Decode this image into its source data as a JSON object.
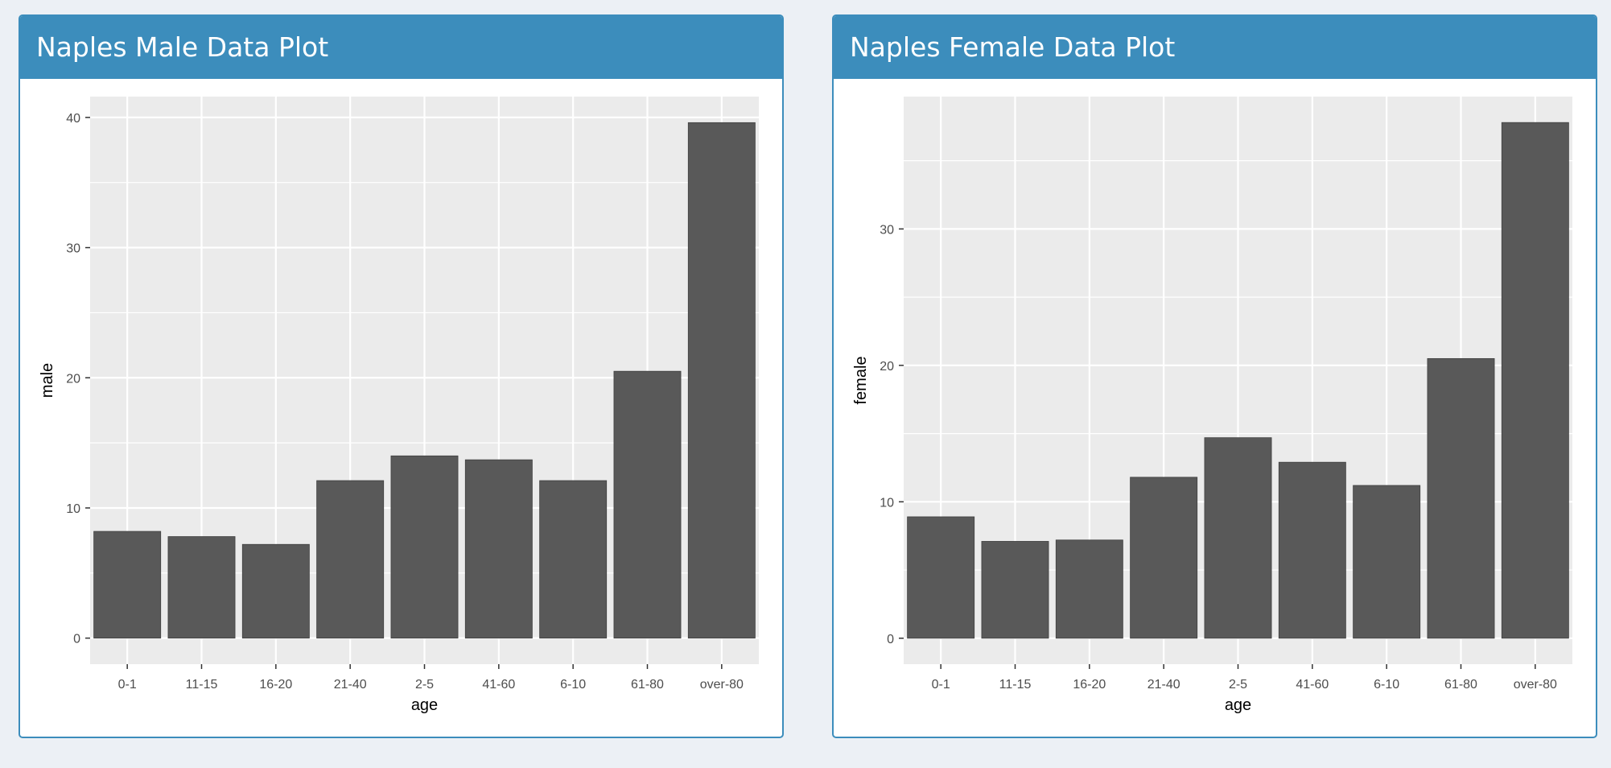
{
  "boxes": [
    {
      "title": "Naples Male Data Plot"
    },
    {
      "title": "Naples Female Data Plot"
    }
  ],
  "colors": {
    "header": "#3c8dbc",
    "panel": "#ebebeb",
    "grid": "#ffffff",
    "bar": "#595959"
  },
  "chart_data": [
    {
      "type": "bar",
      "categories": [
        "0-1",
        "11-15",
        "16-20",
        "21-40",
        "2-5",
        "41-60",
        "6-10",
        "61-80",
        "over-80"
      ],
      "values": [
        8.2,
        7.8,
        7.2,
        12.1,
        14.0,
        13.7,
        12.1,
        20.5,
        39.6
      ],
      "xlabel": "age",
      "ylabel": "male",
      "ylim": [
        -2.0,
        41.6
      ],
      "yticks": [
        0,
        10,
        20,
        30,
        40
      ],
      "grid": true
    },
    {
      "type": "bar",
      "categories": [
        "0-1",
        "11-15",
        "16-20",
        "21-40",
        "2-5",
        "41-60",
        "6-10",
        "61-80",
        "over-80"
      ],
      "values": [
        8.9,
        7.1,
        7.2,
        11.8,
        14.7,
        12.9,
        11.2,
        20.5,
        37.8
      ],
      "xlabel": "age",
      "ylabel": "female",
      "ylim": [
        -1.9,
        39.7
      ],
      "yticks": [
        0,
        10,
        20,
        30
      ],
      "grid": true
    }
  ]
}
